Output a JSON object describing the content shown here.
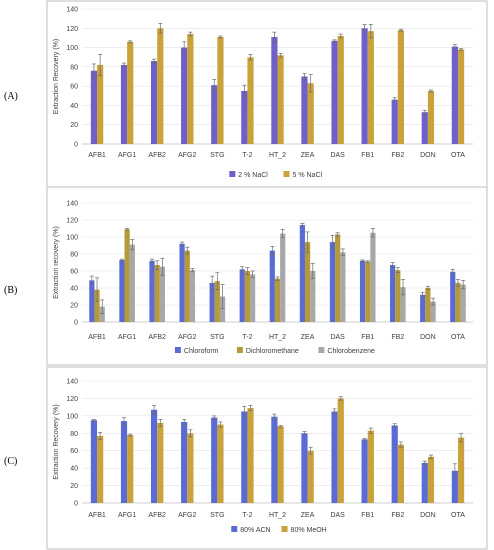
{
  "chart_data": [
    {
      "type": "bar",
      "panel_label": "(A)",
      "ylabel": "Extraction Recovery (%)",
      "ylim": [
        0,
        140
      ],
      "yticks": [
        0,
        20,
        40,
        60,
        80,
        100,
        120,
        140
      ],
      "grid": true,
      "legend_position": "bottom",
      "categories": [
        "AFB1",
        "AFG1",
        "AFB2",
        "AFG2",
        "STG",
        "T-2",
        "HT_2",
        "ZEA",
        "DAS",
        "FB1",
        "FB2",
        "DON",
        "OTA"
      ],
      "series": [
        {
          "name": "2 % NaCl",
          "color": "#6e5fc9",
          "values": [
            76,
            82,
            86,
            100,
            61,
            55,
            111,
            70,
            107,
            120,
            46,
            33,
            101
          ],
          "errors": [
            7,
            2,
            2,
            6,
            6,
            6,
            5,
            3,
            1,
            4,
            2,
            2,
            2
          ]
        },
        {
          "name": "5 % NaCl",
          "color": "#c9a23b",
          "values": [
            82,
            106,
            120,
            114,
            111,
            90,
            92,
            63,
            112,
            117,
            118,
            55,
            98
          ],
          "errors": [
            11,
            1,
            5,
            2,
            1,
            3,
            2,
            9,
            2,
            7,
            1,
            1,
            1
          ]
        }
      ]
    },
    {
      "type": "bar",
      "panel_label": "(B)",
      "ylabel": "Extraction recovery (%)",
      "ylim": [
        0,
        140
      ],
      "yticks": [
        0,
        20,
        40,
        60,
        80,
        100,
        120,
        140
      ],
      "grid": true,
      "legend_position": "bottom",
      "categories": [
        "AFB1",
        "AFG1",
        "AFB2",
        "AFG2",
        "STG",
        "T-2",
        "HT_2",
        "ZEA",
        "DAS",
        "FB1",
        "FB2",
        "DON",
        "OTA"
      ],
      "series": [
        {
          "name": "Chloroform",
          "color": "#5b6bd6",
          "values": [
            49,
            73,
            72,
            92,
            46,
            62,
            84,
            114,
            94,
            72,
            67,
            32,
            59
          ],
          "errors": [
            5,
            1,
            2,
            2,
            8,
            3,
            5,
            2,
            8,
            1,
            3,
            3,
            3
          ]
        },
        {
          "name": "Dichloromethane",
          "color": "#b59a3c",
          "values": [
            38,
            109,
            67,
            84,
            48,
            60,
            51,
            94,
            103,
            71,
            61,
            40,
            46
          ],
          "errors": [
            14,
            1,
            5,
            4,
            10,
            4,
            2,
            12,
            2,
            1,
            3,
            2,
            4
          ]
        },
        {
          "name": "Chlorobenzene",
          "color": "#a8a8a8",
          "values": [
            18,
            91,
            65,
            61,
            30,
            56,
            104,
            60,
            82,
            105,
            41,
            24,
            44
          ],
          "errors": [
            8,
            6,
            10,
            2,
            14,
            4,
            5,
            9,
            4,
            5,
            9,
            4,
            5
          ]
        }
      ]
    },
    {
      "type": "bar",
      "panel_label": "(C)",
      "ylabel": "Extraction Recovery (%)",
      "ylim": [
        0,
        140
      ],
      "yticks": [
        0,
        20,
        40,
        60,
        80,
        100,
        120,
        140
      ],
      "grid": true,
      "legend_position": "bottom",
      "categories": [
        "AFB1",
        "AFG1",
        "AFB2",
        "AFG2",
        "STG",
        "T-2",
        "HT_2",
        "ZEA",
        "DAS",
        "FB1",
        "FB2",
        "DON",
        "OTA"
      ],
      "series": [
        {
          "name": "80% ACN",
          "color": "#5b6bd6",
          "values": [
            95,
            94,
            107,
            93,
            98,
            105,
            99,
            80,
            105,
            73,
            89,
            46,
            37
          ],
          "errors": [
            1,
            4,
            5,
            3,
            2,
            6,
            3,
            2,
            3,
            1,
            2,
            2,
            8
          ]
        },
        {
          "name": "80% MeOH",
          "color": "#c9a23b",
          "values": [
            77,
            78,
            92,
            80,
            90,
            109,
            88,
            60,
            120,
            83,
            67,
            53,
            75
          ],
          "errors": [
            4,
            1,
            4,
            4,
            3,
            3,
            1,
            4,
            2,
            3,
            3,
            2,
            5
          ]
        }
      ]
    }
  ]
}
